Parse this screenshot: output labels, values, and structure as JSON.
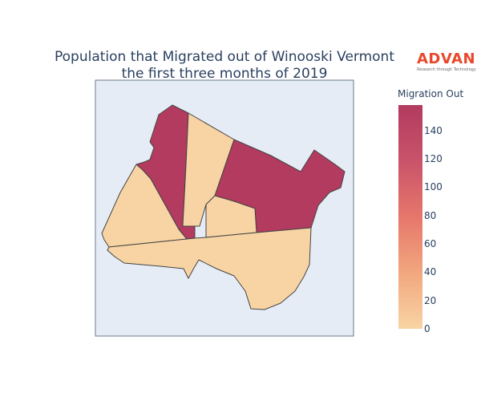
{
  "title": {
    "line1": "Population that Migrated out of Winooski Vermont",
    "line2": "the first three months of 2019"
  },
  "logo": {
    "word": "ADVAN",
    "tagline": "Research through Technology"
  },
  "colorbar": {
    "title": "Migration Out",
    "ticks": [
      "0",
      "20",
      "40",
      "60",
      "80",
      "100",
      "120",
      "140"
    ],
    "min": 0,
    "max": 158,
    "colors": [
      "#f8d4a4",
      "#f2a77e",
      "#e6776b",
      "#c9536a",
      "#b23b5f"
    ]
  },
  "map": {
    "background": "#e5ecf6",
    "regions": [
      {
        "id": "northwest-strip",
        "value": 158
      },
      {
        "id": "north-middle",
        "value": 0
      },
      {
        "id": "northeast",
        "value": 158
      },
      {
        "id": "west",
        "value": 0
      },
      {
        "id": "center",
        "value": 0
      },
      {
        "id": "south",
        "value": 0
      }
    ]
  }
}
